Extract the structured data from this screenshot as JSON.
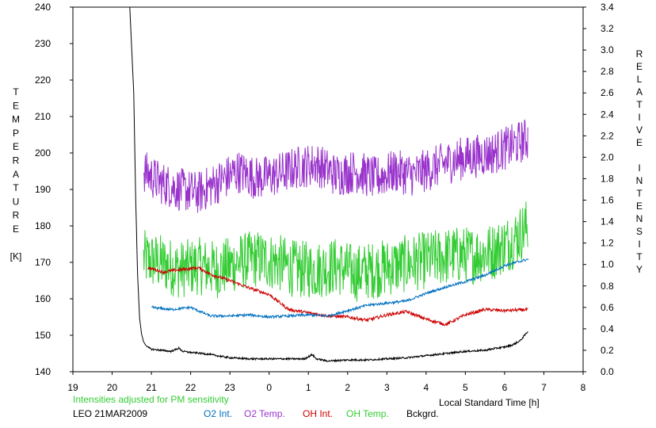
{
  "chart_data": {
    "type": "line",
    "xlabel": "Local Standard Time [h]",
    "xlim": [
      19,
      32
    ],
    "xticks": [
      19,
      20,
      21,
      22,
      23,
      24,
      25,
      26,
      27,
      28,
      29,
      30,
      31,
      32
    ],
    "xtick_labels": [
      "19",
      "20",
      "21",
      "22",
      "23",
      "0",
      "1",
      "2",
      "3",
      "4",
      "5",
      "6",
      "7",
      "8"
    ],
    "ylabel_left_letters": [
      "T",
      "E",
      "M",
      "P",
      "E",
      "R",
      "A",
      "T",
      "U",
      "R",
      "E",
      "",
      "[K]"
    ],
    "ylim_left": [
      140,
      240
    ],
    "yticks_left": [
      140,
      150,
      160,
      170,
      180,
      190,
      200,
      210,
      220,
      230,
      240
    ],
    "ylabel_right_letters": [
      "R",
      "E",
      "L",
      "A",
      "T",
      "I",
      "V",
      "E",
      "",
      "I",
      "N",
      "T",
      "E",
      "N",
      "S",
      "I",
      "T",
      "Y"
    ],
    "ylim_right": [
      0,
      3.4
    ],
    "yticks_right": [
      "0.0",
      "0.2",
      "0.4",
      "0.6",
      "0.8",
      "1.0",
      "1.2",
      "1.4",
      "1.6",
      "1.8",
      "2.0",
      "2.2",
      "2.4",
      "2.6",
      "2.8",
      "3.0",
      "3.2",
      "3.4"
    ],
    "note": "Intensities adjusted for PM sensitivity",
    "station": "LEO 21MAR2009",
    "grid": false,
    "series": [
      {
        "name": "O2 Int.",
        "color": "#0070c0",
        "axis": "right",
        "noise": 0.012,
        "x": [
          21.0,
          21.5,
          22.0,
          22.5,
          23.0,
          23.5,
          24.0,
          24.5,
          25.0,
          25.5,
          26.0,
          26.5,
          27.0,
          27.5,
          28.0,
          28.5,
          29.0,
          29.5,
          30.0,
          30.6
        ],
        "y": [
          0.6,
          0.58,
          0.6,
          0.52,
          0.52,
          0.53,
          0.51,
          0.52,
          0.53,
          0.52,
          0.57,
          0.62,
          0.64,
          0.66,
          0.73,
          0.79,
          0.84,
          0.9,
          0.99,
          1.05
        ]
      },
      {
        "name": "O2 Temp.",
        "color": "#9933cc",
        "axis": "left",
        "noise": 6,
        "x": [
          20.8,
          21.2,
          21.7,
          22.2,
          22.7,
          23.2,
          23.7,
          24.2,
          24.7,
          25.2,
          25.7,
          26.2,
          26.7,
          27.2,
          27.7,
          28.2,
          28.7,
          29.2,
          29.7,
          30.2,
          30.6
        ],
        "y": [
          195,
          192,
          190,
          189,
          192,
          195,
          193,
          194,
          196,
          197,
          194,
          195,
          193,
          195,
          194,
          196,
          198,
          199,
          200,
          202,
          204
        ]
      },
      {
        "name": "OH Int.",
        "color": "#cc0000",
        "axis": "right",
        "noise": 0.015,
        "x": [
          20.9,
          21.3,
          21.7,
          22.2,
          22.5,
          23.0,
          23.5,
          24.0,
          24.5,
          25.0,
          25.5,
          26.0,
          26.5,
          27.0,
          27.5,
          28.0,
          28.5,
          29.0,
          29.5,
          30.0,
          30.6
        ],
        "y": [
          0.97,
          0.93,
          0.95,
          0.97,
          0.91,
          0.85,
          0.78,
          0.72,
          0.58,
          0.55,
          0.52,
          0.51,
          0.48,
          0.53,
          0.56,
          0.49,
          0.44,
          0.53,
          0.58,
          0.57,
          0.58
        ]
      },
      {
        "name": "OH Temp.",
        "color": "#33cc33",
        "axis": "left",
        "noise": 8,
        "x": [
          20.8,
          21.2,
          21.7,
          22.2,
          22.7,
          23.2,
          23.7,
          24.2,
          24.7,
          25.2,
          25.7,
          26.2,
          26.7,
          27.2,
          27.7,
          28.2,
          28.7,
          29.2,
          29.7,
          30.2,
          30.6
        ],
        "y": [
          171,
          170,
          168,
          169,
          168,
          170,
          171,
          170,
          168,
          168,
          169,
          167,
          168,
          169,
          170,
          171,
          172,
          172,
          173,
          176,
          180
        ]
      },
      {
        "name": "Bckgrd.",
        "color": "#000000",
        "axis": "right",
        "noise": 0.008,
        "x": [
          20.45,
          20.55,
          20.6,
          20.65,
          20.7,
          20.75,
          20.8,
          20.85,
          20.9,
          21.0,
          21.5,
          21.7,
          21.8,
          22.0,
          22.3,
          22.5,
          23.0,
          23.5,
          24.0,
          24.5,
          24.9,
          25.1,
          25.2,
          25.5,
          26.0,
          26.5,
          27.0,
          27.5,
          28.0,
          28.5,
          29.0,
          29.5,
          29.8,
          30.0,
          30.2,
          30.4,
          30.6
        ],
        "y": [
          3.4,
          2.6,
          1.6,
          0.9,
          0.5,
          0.35,
          0.28,
          0.25,
          0.23,
          0.21,
          0.19,
          0.22,
          0.19,
          0.18,
          0.17,
          0.16,
          0.13,
          0.12,
          0.12,
          0.12,
          0.12,
          0.16,
          0.12,
          0.1,
          0.11,
          0.11,
          0.12,
          0.13,
          0.15,
          0.17,
          0.19,
          0.2,
          0.22,
          0.23,
          0.25,
          0.29,
          0.38
        ]
      }
    ]
  }
}
